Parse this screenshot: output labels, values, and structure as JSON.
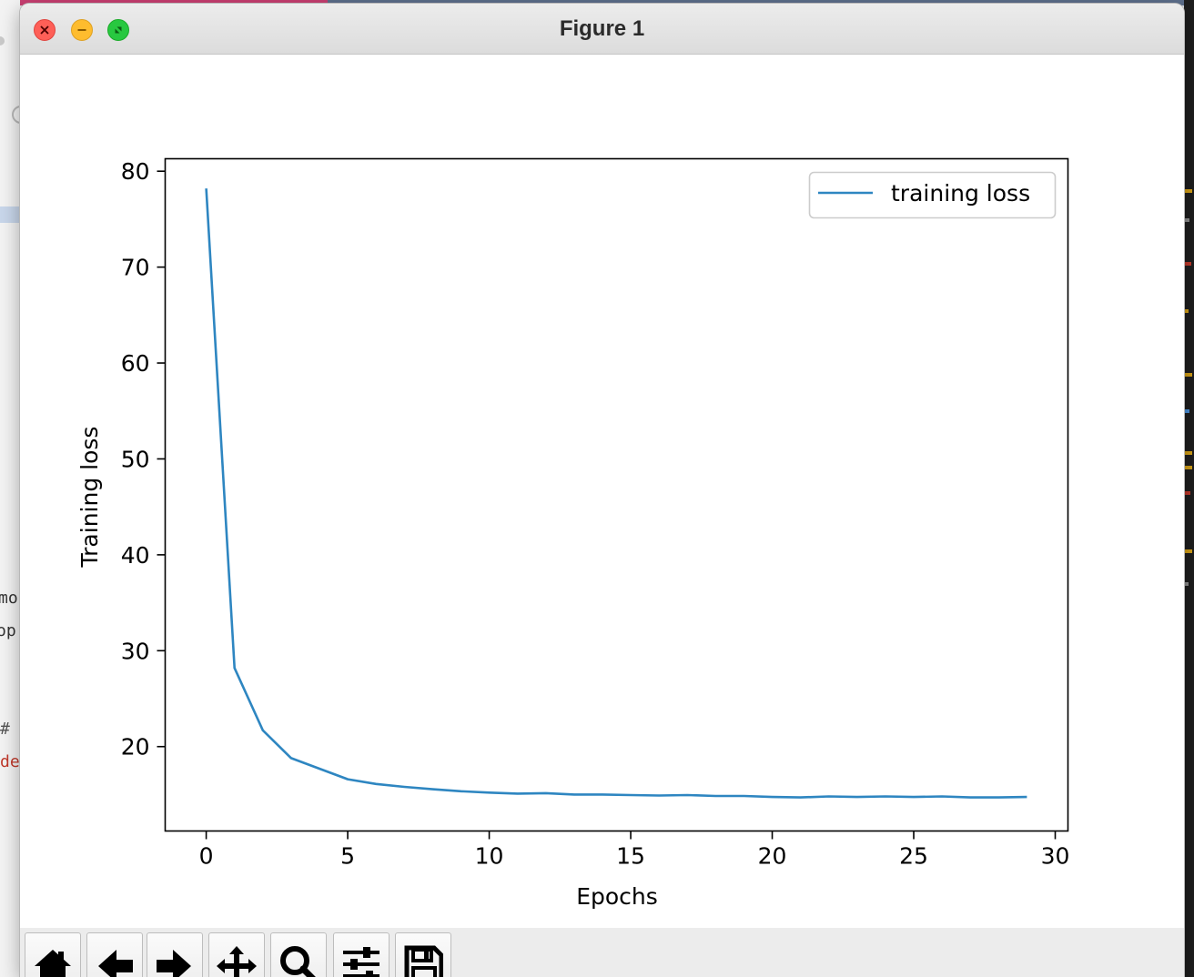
{
  "window": {
    "title": "Figure 1"
  },
  "background": {
    "code_fragments": [
      "mo",
      "op",
      "#",
      "de"
    ]
  },
  "toolbar": {
    "buttons": [
      {
        "name": "home-button",
        "icon": "home-icon"
      },
      {
        "name": "back-button",
        "icon": "arrow-left-icon"
      },
      {
        "name": "forward-button",
        "icon": "arrow-right-icon"
      },
      {
        "name": "pan-button",
        "icon": "move-icon"
      },
      {
        "name": "zoom-button",
        "icon": "magnifier-icon"
      },
      {
        "name": "configure-subplots-button",
        "icon": "sliders-icon"
      },
      {
        "name": "save-button",
        "icon": "floppy-disk-icon"
      }
    ]
  },
  "chart_data": {
    "type": "line",
    "title": "",
    "xlabel": "Epochs",
    "ylabel": "Training loss",
    "xlim": [
      -1.45,
      30.45
    ],
    "ylim": [
      11.2,
      81.3
    ],
    "xticks": [
      0,
      5,
      10,
      15,
      20,
      25,
      30
    ],
    "yticks": [
      20,
      30,
      40,
      50,
      60,
      70,
      80
    ],
    "grid": false,
    "legend_position": "top-right",
    "series": [
      {
        "name": "training loss",
        "color": "#2e86c1",
        "x": [
          0,
          1,
          2,
          3,
          4,
          5,
          6,
          7,
          8,
          9,
          10,
          11,
          12,
          13,
          14,
          15,
          16,
          17,
          18,
          19,
          20,
          21,
          22,
          23,
          24,
          25,
          26,
          27,
          28,
          29
        ],
        "values": [
          78.2,
          28.2,
          21.7,
          18.8,
          17.7,
          16.6,
          16.1,
          15.8,
          15.55,
          15.35,
          15.2,
          15.1,
          15.15,
          15.0,
          15.0,
          14.95,
          14.9,
          14.95,
          14.85,
          14.85,
          14.75,
          14.7,
          14.8,
          14.75,
          14.8,
          14.75,
          14.8,
          14.7,
          14.7,
          14.75
        ]
      }
    ]
  }
}
